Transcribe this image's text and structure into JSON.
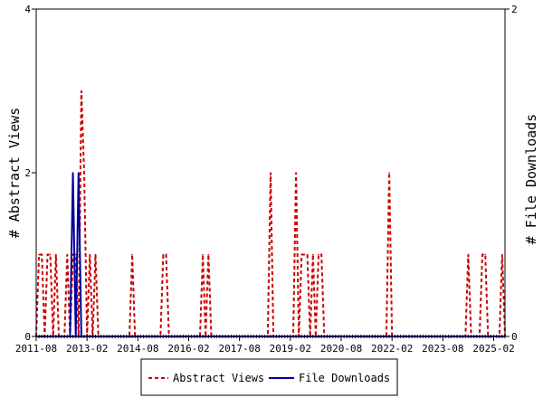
{
  "chart_data": {
    "type": "line",
    "xlabel": "",
    "ylabel_left": "# Abstract Views",
    "ylabel_right": "# File Downloads",
    "x_ticks": [
      "2011-08",
      "2013-02",
      "2014-08",
      "2016-02",
      "2017-08",
      "2019-02",
      "2020-08",
      "2022-02",
      "2023-08",
      "2025-02"
    ],
    "x_range": [
      "2011-08",
      "2025-06"
    ],
    "ylim_left": [
      0,
      4
    ],
    "ylim_right": [
      0,
      2
    ],
    "y_ticks_left": [
      0,
      2,
      4
    ],
    "y_ticks_right": [
      0,
      2
    ],
    "grid": false,
    "legend_position": "bottom-center",
    "series": [
      {
        "name": "Abstract Views",
        "axis": "left",
        "style": "dashed",
        "color": "#cc0000",
        "points": [
          [
            "2011-08",
            0
          ],
          [
            "2011-09",
            1
          ],
          [
            "2011-10",
            1
          ],
          [
            "2011-11",
            0
          ],
          [
            "2011-12",
            1
          ],
          [
            "2012-01",
            1
          ],
          [
            "2012-02",
            0
          ],
          [
            "2012-03",
            1
          ],
          [
            "2012-04",
            0
          ],
          [
            "2012-05",
            0
          ],
          [
            "2012-06",
            0
          ],
          [
            "2012-07",
            1
          ],
          [
            "2012-08",
            0
          ],
          [
            "2012-09",
            1
          ],
          [
            "2012-10",
            1
          ],
          [
            "2012-11",
            0
          ],
          [
            "2012-12",
            3
          ],
          [
            "2013-01",
            2
          ],
          [
            "2013-02",
            0
          ],
          [
            "2013-03",
            1
          ],
          [
            "2013-04",
            0
          ],
          [
            "2013-05",
            1
          ],
          [
            "2013-06",
            0
          ],
          [
            "2014-05",
            0
          ],
          [
            "2014-06",
            1
          ],
          [
            "2014-07",
            0
          ],
          [
            "2015-04",
            0
          ],
          [
            "2015-05",
            1
          ],
          [
            "2015-06",
            1
          ],
          [
            "2015-07",
            0
          ],
          [
            "2016-06",
            0
          ],
          [
            "2016-07",
            1
          ],
          [
            "2016-08",
            0
          ],
          [
            "2016-09",
            1
          ],
          [
            "2016-10",
            0
          ],
          [
            "2018-06",
            0
          ],
          [
            "2018-07",
            2
          ],
          [
            "2018-08",
            0
          ],
          [
            "2019-03",
            0
          ],
          [
            "2019-04",
            2
          ],
          [
            "2019-05",
            0
          ],
          [
            "2019-06",
            1
          ],
          [
            "2019-07",
            1
          ],
          [
            "2019-08",
            1
          ],
          [
            "2019-09",
            0
          ],
          [
            "2019-10",
            1
          ],
          [
            "2019-11",
            0
          ],
          [
            "2019-12",
            1
          ],
          [
            "2020-01",
            1
          ],
          [
            "2020-02",
            0
          ],
          [
            "2021-12",
            0
          ],
          [
            "2022-01",
            2
          ],
          [
            "2022-02",
            0
          ],
          [
            "2024-04",
            0
          ],
          [
            "2024-05",
            1
          ],
          [
            "2024-06",
            0
          ],
          [
            "2024-09",
            0
          ],
          [
            "2024-10",
            1
          ],
          [
            "2024-11",
            1
          ],
          [
            "2024-12",
            0
          ],
          [
            "2025-04",
            0
          ],
          [
            "2025-05",
            1
          ],
          [
            "2025-06",
            0
          ]
        ]
      },
      {
        "name": "File Downloads",
        "axis": "right",
        "style": "solid",
        "color": "#000099",
        "points": [
          [
            "2012-08",
            0
          ],
          [
            "2012-09",
            1
          ],
          [
            "2012-10",
            0
          ],
          [
            "2012-11",
            1
          ],
          [
            "2012-12",
            0
          ]
        ]
      }
    ],
    "legend": [
      {
        "label": "Abstract Views",
        "style": "dashed",
        "color": "#cc0000"
      },
      {
        "label": "File Downloads",
        "style": "solid",
        "color": "#000099"
      }
    ]
  }
}
